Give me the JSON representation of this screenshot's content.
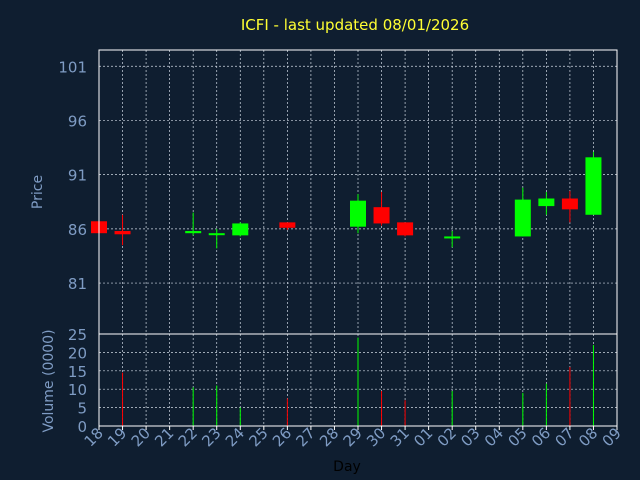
{
  "colors": {
    "background": "#0f1e30",
    "axis": "#ffffff",
    "grid": "#cfd8e3",
    "title": "#ffff33",
    "label": "#7f9cc4",
    "up": "#00ff00",
    "down": "#ff0000"
  },
  "chart_data": {
    "type": "candlestick",
    "title": "ICFI - last updated 08/01/2026",
    "xlabel": "Day",
    "price_ylabel": "Price",
    "volume_ylabel": "Volume (0000)",
    "price_ylim": [
      76.3,
      102.5
    ],
    "price_ticks": [
      101,
      96,
      91,
      86,
      81
    ],
    "volume_ylim": [
      0,
      25
    ],
    "volume_ticks": [
      25,
      20,
      15,
      10,
      5,
      0
    ],
    "grid": true,
    "x_ticks": [
      "18",
      "19",
      "20",
      "21",
      "22",
      "23",
      "24",
      "25",
      "26",
      "27",
      "28",
      "29",
      "30",
      "31",
      "01",
      "02",
      "03",
      "04",
      "05",
      "06",
      "07",
      "08",
      "09"
    ],
    "candles": [
      {
        "day": "18",
        "open": 86.7,
        "high": 86.7,
        "low": 85.6,
        "close": 85.6,
        "volume": 0
      },
      {
        "day": "19",
        "open": 85.8,
        "high": 87.3,
        "low": 84.5,
        "close": 85.5,
        "volume": 14.5
      },
      {
        "day": "22",
        "open": 85.6,
        "high": 87.5,
        "low": 85.4,
        "close": 85.8,
        "volume": 10.5
      },
      {
        "day": "23",
        "open": 85.5,
        "high": 86.0,
        "low": 84.2,
        "close": 85.6,
        "volume": 11
      },
      {
        "day": "24",
        "open": 85.4,
        "high": 86.6,
        "low": 85.3,
        "close": 86.5,
        "volume": 5
      },
      {
        "day": "26",
        "open": 86.6,
        "high": 86.6,
        "low": 85.9,
        "close": 86.1,
        "volume": 7.5
      },
      {
        "day": "29",
        "open": 86.2,
        "high": 89.2,
        "low": 85.6,
        "close": 88.6,
        "volume": 24
      },
      {
        "day": "30",
        "open": 88.0,
        "high": 89.4,
        "low": 86.3,
        "close": 86.5,
        "volume": 9.5
      },
      {
        "day": "31",
        "open": 86.6,
        "high": 86.6,
        "low": 85.3,
        "close": 85.4,
        "volume": 7
      },
      {
        "day": "02",
        "open": 85.2,
        "high": 85.8,
        "low": 84.3,
        "close": 85.3,
        "volume": 9.5
      },
      {
        "day": "05",
        "open": 85.3,
        "high": 89.8,
        "low": 85.3,
        "close": 88.7,
        "volume": 9
      },
      {
        "day": "06",
        "open": 88.1,
        "high": 89.4,
        "low": 87.3,
        "close": 88.8,
        "volume": 11.5
      },
      {
        "day": "07",
        "open": 88.8,
        "high": 89.5,
        "low": 86.6,
        "close": 87.8,
        "volume": 16
      },
      {
        "day": "08",
        "open": 87.3,
        "high": 93.1,
        "low": 87.3,
        "close": 92.6,
        "volume": 22
      }
    ]
  }
}
